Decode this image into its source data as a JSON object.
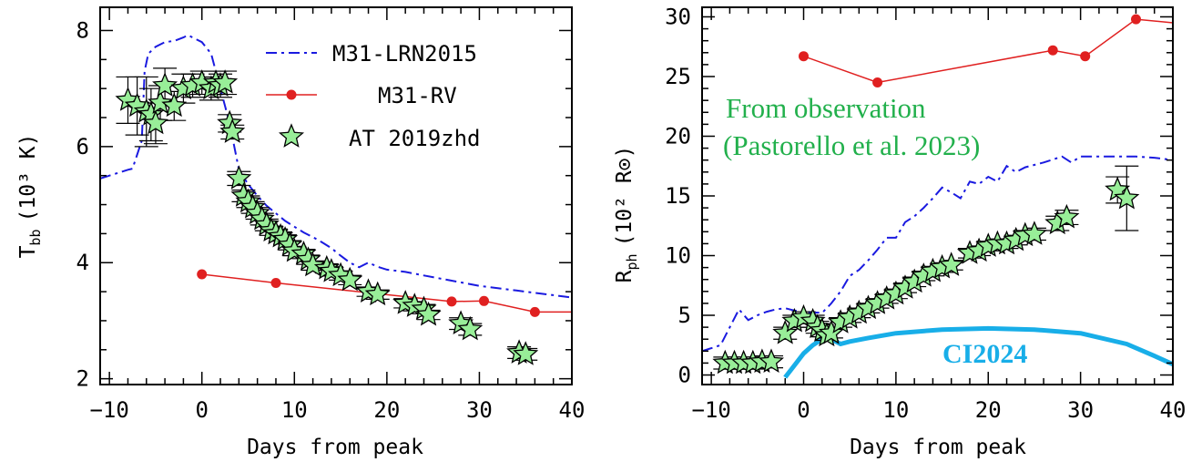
{
  "chart_data": [
    {
      "type": "scatter",
      "xlabel": "Days from peak",
      "ylabel": "T",
      "ylabel_sub": "bb",
      "ylabel_units": "(10³ K)",
      "xlim": [
        -11,
        40
      ],
      "ylim": [
        1.9,
        8.4
      ],
      "xticks": [
        -10,
        0,
        10,
        20,
        30,
        40
      ],
      "yticks": [
        2,
        4,
        6,
        8
      ],
      "legend": {
        "placement": "top-right",
        "entries": [
          "M31-LRN2015",
          "M31-RV",
          "AT 2019zhd"
        ]
      },
      "series": [
        {
          "name": "M31-LRN2015",
          "style": "dash-dot",
          "color": "#1a1ae0",
          "x": [
            -11,
            -8,
            -7.5,
            -6.5,
            -6.2,
            -5.8,
            -5,
            -4,
            -3,
            -2,
            -1.5,
            0,
            1,
            2,
            2.5,
            3,
            3.5,
            4,
            5,
            6,
            7,
            8,
            9,
            10,
            11,
            12,
            13,
            14,
            15,
            16,
            17,
            18,
            19,
            20,
            22,
            24,
            26,
            28,
            30,
            32,
            34,
            36,
            38,
            40
          ],
          "y": [
            5.45,
            5.6,
            5.62,
            6.1,
            7.3,
            7.6,
            7.72,
            7.8,
            7.82,
            7.88,
            7.92,
            7.8,
            7.6,
            7.0,
            6.7,
            6.4,
            6.0,
            5.6,
            5.35,
            5.15,
            4.98,
            4.85,
            4.72,
            4.62,
            4.52,
            4.44,
            4.35,
            4.25,
            4.12,
            4.0,
            3.92,
            4.0,
            3.93,
            3.88,
            3.84,
            3.78,
            3.72,
            3.66,
            3.6,
            3.56,
            3.52,
            3.48,
            3.44,
            3.4
          ]
        },
        {
          "name": "M31-RV",
          "style": "line-dots",
          "color": "#e02020",
          "x": [
            0,
            8,
            27,
            30.5,
            36,
            40
          ],
          "y": [
            3.8,
            3.65,
            3.33,
            3.34,
            3.15,
            3.15
          ]
        },
        {
          "name": "AT 2019zhd",
          "style": "stars",
          "color": "#98ee98",
          "x": [
            -8,
            -7,
            -6,
            -5.5,
            -5,
            -4.5,
            -4,
            -3,
            -2,
            -1,
            0,
            1,
            1.5,
            2,
            2.5,
            3,
            3.3,
            4,
            4.5,
            5,
            5.5,
            6,
            6.5,
            7,
            7.5,
            8,
            8.5,
            9,
            9.5,
            10,
            11,
            11.5,
            12,
            13.5,
            14,
            15,
            16,
            18,
            19,
            22,
            23,
            24,
            24.5,
            28,
            29,
            34.3,
            35
          ],
          "y": [
            6.8,
            6.7,
            6.6,
            6.55,
            6.4,
            6.75,
            7.05,
            6.7,
            7.0,
            7.05,
            7.1,
            7.0,
            7.1,
            7.05,
            7.1,
            6.4,
            6.25,
            5.45,
            5.15,
            5.05,
            4.95,
            4.85,
            4.75,
            4.65,
            4.55,
            4.5,
            4.45,
            4.4,
            4.3,
            4.2,
            4.15,
            4.05,
            3.95,
            3.9,
            3.85,
            3.78,
            3.7,
            3.5,
            3.45,
            3.3,
            3.25,
            3.2,
            3.1,
            2.95,
            2.85,
            2.45,
            2.42
          ],
          "yerr": [
            0.4,
            0.5,
            0.6,
            0.45,
            0.35,
            0.3,
            0.3,
            0.25,
            0.25,
            0.2,
            0.2,
            0.2,
            0.2,
            0.2,
            0.2,
            0.15,
            0.12,
            0.12,
            0.1,
            0.1,
            0.1,
            0.1,
            0.1,
            0.1,
            0.08,
            0.08,
            0.08,
            0.08,
            0.08,
            0.08,
            0.08,
            0.08,
            0.08,
            0.08,
            0.08,
            0.08,
            0.08,
            0.08,
            0.08,
            0.08,
            0.08,
            0.08,
            0.08,
            0.1,
            0.1,
            0.1,
            0.1
          ]
        }
      ]
    },
    {
      "type": "scatter",
      "xlabel": "Days from peak",
      "ylabel": "R",
      "ylabel_sub": "ph",
      "ylabel_units": "(10² R⊙)",
      "xlim": [
        -11,
        40
      ],
      "ylim": [
        -0.8,
        30.8
      ],
      "xticks": [
        -10,
        0,
        10,
        20,
        30,
        40
      ],
      "yticks": [
        0,
        5,
        10,
        15,
        20,
        25,
        30
      ],
      "annotations": [
        "From observation",
        "(Pastorello et al. 2023)",
        "CI2024"
      ],
      "series": [
        {
          "name": "M31-RV",
          "style": "line-dots",
          "color": "#e02020",
          "x": [
            0,
            8,
            27,
            30.5,
            36,
            40
          ],
          "y": [
            26.7,
            24.5,
            27.2,
            26.7,
            29.8,
            29.5
          ]
        },
        {
          "name": "M31-LRN2015",
          "style": "dash-dot",
          "color": "#1a1ae0",
          "x": [
            -11,
            -9,
            -7,
            -6,
            -5,
            -4,
            -3,
            -2,
            -1,
            0,
            1,
            2,
            3,
            4,
            5,
            6,
            7,
            8,
            9,
            10,
            11,
            12,
            13,
            14,
            15,
            16,
            17,
            18,
            19,
            20,
            21,
            22,
            23,
            24,
            26,
            28,
            29,
            30,
            32,
            34,
            36,
            38,
            40
          ],
          "y": [
            2.0,
            2.5,
            5.5,
            4.6,
            5.0,
            5.3,
            5.5,
            5.6,
            5.4,
            5.3,
            5.25,
            5.2,
            6.0,
            7.0,
            8.3,
            8.8,
            9.6,
            10.5,
            11.5,
            11.5,
            12.8,
            13.3,
            14.0,
            14.8,
            15.7,
            15.3,
            14.8,
            16.2,
            16.0,
            16.6,
            16.2,
            17.5,
            17.0,
            17.4,
            17.8,
            18.3,
            17.8,
            18.3,
            18.3,
            18.3,
            18.3,
            18.2,
            18.0
          ]
        },
        {
          "name": "CI2024",
          "style": "thick",
          "color": "#18aee8",
          "x": [
            -2,
            -1,
            0,
            1,
            2,
            3,
            4,
            5,
            7,
            10,
            15,
            20,
            25,
            30,
            35,
            38,
            40
          ],
          "y": [
            -0.2,
            0.8,
            1.8,
            2.5,
            3.0,
            3.0,
            2.6,
            2.8,
            3.1,
            3.5,
            3.8,
            3.9,
            3.8,
            3.5,
            2.6,
            1.6,
            0.9
          ]
        },
        {
          "name": "AT 2019zhd",
          "style": "stars",
          "color": "#98ee98",
          "x": [
            -8.5,
            -7.5,
            -6.5,
            -5.5,
            -4.5,
            -3.5,
            -2,
            -1,
            0,
            1,
            1.5,
            2,
            2.5,
            3,
            4,
            5,
            6,
            7,
            8,
            9,
            10,
            11,
            12,
            13,
            14,
            15,
            16,
            18,
            19,
            20,
            21,
            22,
            23,
            24,
            25,
            27.5,
            28.5,
            34,
            35
          ],
          "y": [
            1.0,
            1.0,
            1.0,
            1.0,
            1.1,
            1.1,
            3.5,
            4.5,
            4.8,
            4.5,
            4.0,
            3.7,
            3.3,
            3.5,
            4.4,
            4.8,
            5.2,
            5.6,
            6.0,
            6.4,
            6.8,
            7.3,
            7.8,
            8.3,
            8.7,
            9.0,
            9.2,
            10.2,
            10.4,
            10.8,
            11.0,
            11.0,
            11.3,
            11.7,
            11.8,
            12.7,
            13.2,
            15.5,
            14.8
          ],
          "yerr": [
            0.5,
            0.5,
            0.5,
            0.5,
            0.5,
            0.5,
            0.5,
            0.5,
            0.5,
            0.5,
            0.5,
            0.5,
            0.4,
            0.4,
            0.4,
            0.4,
            0.4,
            0.4,
            0.4,
            0.4,
            0.4,
            0.4,
            0.4,
            0.4,
            0.4,
            0.4,
            0.4,
            0.4,
            0.4,
            0.4,
            0.4,
            0.4,
            0.4,
            0.4,
            0.5,
            0.6,
            0.6,
            1.1,
            2.7
          ]
        }
      ]
    }
  ]
}
